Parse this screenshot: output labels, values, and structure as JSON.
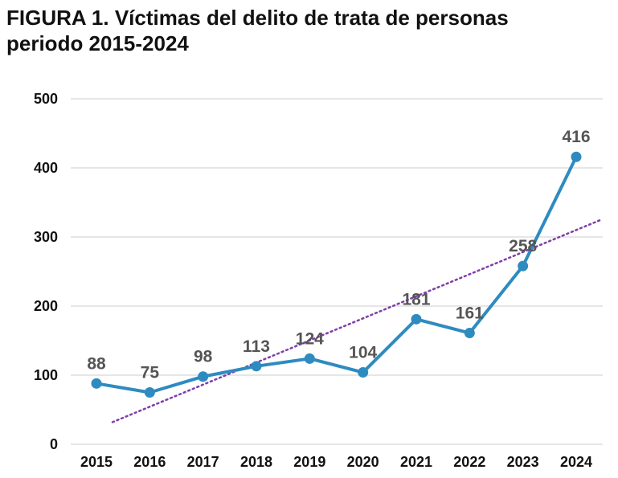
{
  "title_line1": "FIGURA 1. Víctimas del delito de trata de personas",
  "title_line2": "periodo 2015-2024",
  "colors": {
    "line": "#2e8bc0",
    "trend": "#7e3fa8",
    "grid": "#cccccc"
  },
  "chart_data": {
    "type": "line",
    "categories": [
      "2015",
      "2016",
      "2017",
      "2018",
      "2019",
      "2020",
      "2021",
      "2022",
      "2023",
      "2024"
    ],
    "values": [
      88,
      75,
      98,
      113,
      124,
      104,
      181,
      161,
      258,
      416
    ],
    "data_labels": [
      "88",
      "75",
      "98",
      "113",
      "124",
      "104",
      "181",
      "161",
      "258",
      "416"
    ],
    "yticks": [
      0,
      100,
      200,
      300,
      400,
      500
    ],
    "ytick_labels": [
      "0",
      "100",
      "200",
      "300",
      "400",
      "500"
    ],
    "ylim": [
      0,
      500
    ],
    "grid": true,
    "trendline": {
      "type": "linear",
      "style": "dotted",
      "start_value": 32,
      "end_value": 325
    }
  }
}
